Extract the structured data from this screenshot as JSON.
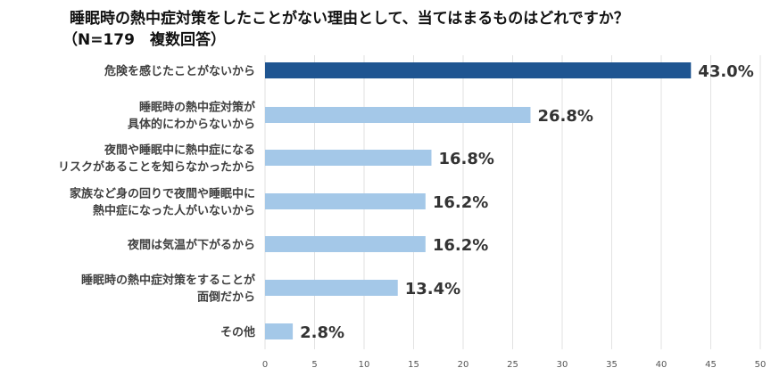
{
  "chart_data": {
    "type": "bar",
    "orientation": "horizontal",
    "title": "睡眠時の熱中症対策をしたことがない理由として、当てはまるものはどれですか？",
    "subtitle": "（N=179　複数回答）",
    "categories": [
      [
        "危険を感じたことがないから"
      ],
      [
        "睡眠時の熱中症対策が",
        "具体的にわからないから"
      ],
      [
        "夜間や睡眠中に熱中症になる",
        "リスクがあることを知らなかったから"
      ],
      [
        "家族など身の回りで夜間や睡眠中に",
        "熱中症になった人がいないから"
      ],
      [
        "夜間は気温が下がるから"
      ],
      [
        "睡眠時の熱中症対策をすることが",
        "面倒だから"
      ],
      [
        "その他"
      ]
    ],
    "values": [
      43.0,
      26.8,
      16.8,
      16.2,
      16.2,
      13.4,
      2.8
    ],
    "data_labels": [
      "43.0%",
      "26.8%",
      "16.8%",
      "16.2%",
      "16.2%",
      "13.4%",
      "2.8%"
    ],
    "xlim": [
      0,
      50
    ],
    "xticks": [
      "0",
      "5",
      "10",
      "15",
      "20",
      "25",
      "30",
      "35",
      "40",
      "45",
      "50"
    ],
    "grid": true,
    "colors": {
      "highlight": "#1f5591",
      "default": "#a4c8e8",
      "grid": "#e2e2e2",
      "label": "#404040"
    }
  }
}
